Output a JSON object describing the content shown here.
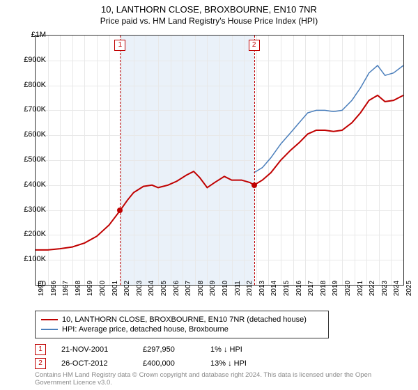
{
  "title": "10, LANTHORN CLOSE, BROXBOURNE, EN10 7NR",
  "subtitle": "Price paid vs. HM Land Registry's House Price Index (HPI)",
  "chart": {
    "type": "line",
    "x_years": [
      1995,
      1996,
      1997,
      1998,
      1999,
      2000,
      2001,
      2002,
      2003,
      2004,
      2005,
      2006,
      2007,
      2008,
      2009,
      2010,
      2011,
      2012,
      2013,
      2014,
      2015,
      2016,
      2017,
      2018,
      2019,
      2020,
      2021,
      2022,
      2023,
      2024,
      2025
    ],
    "ylim": [
      0,
      1000000
    ],
    "ytick_step": 100000,
    "y_labels": [
      "£0",
      "£100K",
      "£200K",
      "£300K",
      "£400K",
      "£500K",
      "£600K",
      "£700K",
      "£800K",
      "£900K",
      "£1M"
    ],
    "grid_color": "#e8e8e8",
    "background_color": "#ffffff",
    "highlight_band": {
      "x_start": 2001.9,
      "x_end": 2012.82,
      "color": "#eaf1f9"
    },
    "series": [
      {
        "name": "price_paid",
        "color": "#c00000",
        "width": 2,
        "data": [
          [
            1995,
            140000
          ],
          [
            1996,
            140000
          ],
          [
            1997,
            145000
          ],
          [
            1998,
            152000
          ],
          [
            1999,
            168000
          ],
          [
            2000,
            195000
          ],
          [
            2001,
            240000
          ],
          [
            2001.9,
            297950
          ],
          [
            2002.5,
            340000
          ],
          [
            2003,
            370000
          ],
          [
            2003.8,
            395000
          ],
          [
            2004.5,
            400000
          ],
          [
            2005,
            390000
          ],
          [
            2005.8,
            400000
          ],
          [
            2006.5,
            415000
          ],
          [
            2007.3,
            440000
          ],
          [
            2007.9,
            455000
          ],
          [
            2008.4,
            430000
          ],
          [
            2009,
            390000
          ],
          [
            2009.6,
            410000
          ],
          [
            2010.4,
            435000
          ],
          [
            2011,
            420000
          ],
          [
            2011.8,
            420000
          ],
          [
            2012.5,
            410000
          ],
          [
            2012.82,
            400000
          ],
          [
            2013.5,
            420000
          ],
          [
            2014.2,
            450000
          ],
          [
            2015,
            500000
          ],
          [
            2015.8,
            540000
          ],
          [
            2016.5,
            570000
          ],
          [
            2017.2,
            605000
          ],
          [
            2017.9,
            620000
          ],
          [
            2018.6,
            620000
          ],
          [
            2019.3,
            615000
          ],
          [
            2020,
            620000
          ],
          [
            2020.8,
            650000
          ],
          [
            2021.5,
            690000
          ],
          [
            2022.2,
            740000
          ],
          [
            2022.9,
            760000
          ],
          [
            2023.5,
            735000
          ],
          [
            2024.2,
            740000
          ],
          [
            2025,
            760000
          ]
        ]
      },
      {
        "name": "hpi",
        "color": "#4a7ebb",
        "width": 1.5,
        "data": [
          [
            2012.82,
            450000
          ],
          [
            2013.5,
            470000
          ],
          [
            2014.2,
            510000
          ],
          [
            2015,
            565000
          ],
          [
            2015.8,
            610000
          ],
          [
            2016.5,
            650000
          ],
          [
            2017.2,
            690000
          ],
          [
            2017.9,
            700000
          ],
          [
            2018.6,
            700000
          ],
          [
            2019.3,
            695000
          ],
          [
            2020,
            700000
          ],
          [
            2020.8,
            740000
          ],
          [
            2021.5,
            790000
          ],
          [
            2022.2,
            850000
          ],
          [
            2022.9,
            880000
          ],
          [
            2023.5,
            840000
          ],
          [
            2024.2,
            850000
          ],
          [
            2025,
            880000
          ]
        ]
      }
    ],
    "sale_markers": [
      {
        "n": "1",
        "x": 2001.9,
        "dot_y": 297950,
        "dot_color": "#c00000"
      },
      {
        "n": "2",
        "x": 2012.82,
        "dot_y": 400000,
        "dot_color": "#c00000"
      }
    ]
  },
  "legend": {
    "items": [
      {
        "color": "#c00000",
        "label": "10, LANTHORN CLOSE, BROXBOURNE, EN10 7NR (detached house)"
      },
      {
        "color": "#4a7ebb",
        "label": "HPI: Average price, detached house, Broxbourne"
      }
    ]
  },
  "sales": [
    {
      "n": "1",
      "date": "21-NOV-2001",
      "price": "£297,950",
      "delta": "1% ↓ HPI"
    },
    {
      "n": "2",
      "date": "26-OCT-2012",
      "price": "£400,000",
      "delta": "13% ↓ HPI"
    }
  ],
  "attribution": "Contains HM Land Registry data © Crown copyright and database right 2024. This data is licensed under the Open Government Licence v3.0."
}
